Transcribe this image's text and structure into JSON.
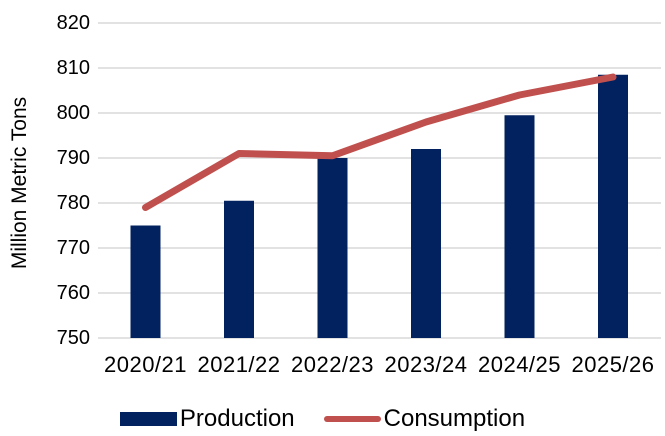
{
  "chart_data": {
    "type": "combo-bar-line",
    "categories": [
      "2020/21",
      "2021/22",
      "2022/23",
      "2023/24",
      "2024/25",
      "2025/26"
    ],
    "series": [
      {
        "name": "Production",
        "type": "bar",
        "color": "#02215F",
        "values": [
          775,
          780.5,
          790,
          792,
          799.5,
          808.5
        ]
      },
      {
        "name": "Consumption",
        "type": "line",
        "color": "#C0504D",
        "values": [
          779,
          791,
          790.5,
          798,
          804,
          808
        ]
      }
    ],
    "ylabel": "Million Metric Tons",
    "ylim": [
      750,
      820
    ],
    "ytick_step": 10,
    "y_tick_labels": [
      "750",
      "760",
      "770",
      "780",
      "790",
      "800",
      "810",
      "820"
    ],
    "grid": "horizontal",
    "legend_position": "bottom"
  },
  "colors": {
    "background": "#FFFFFF",
    "gridline": "#D9D9D9",
    "text": "#000000"
  }
}
